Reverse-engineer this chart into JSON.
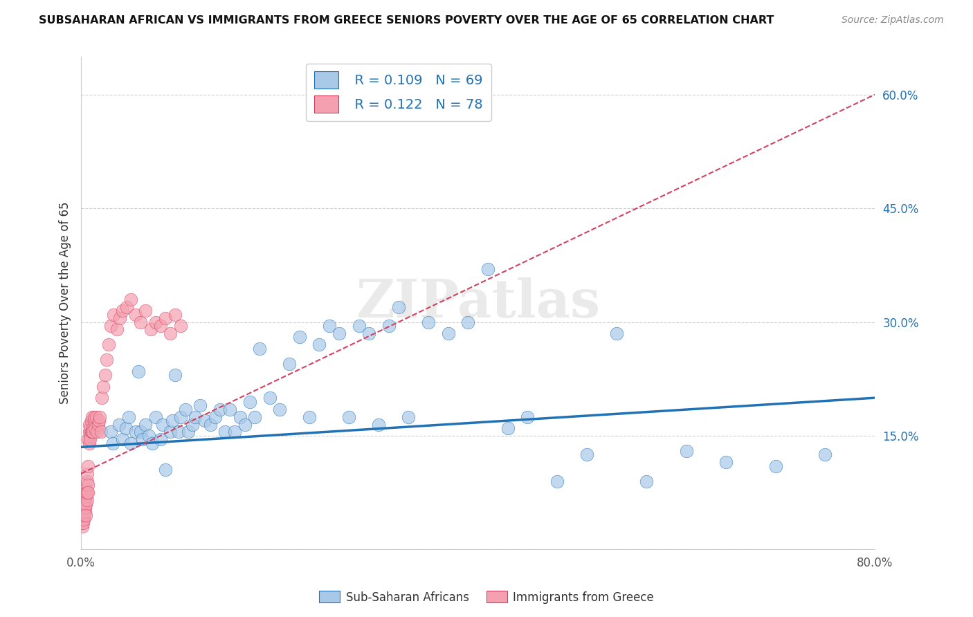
{
  "title": "SUBSAHARAN AFRICAN VS IMMIGRANTS FROM GREECE SENIORS POVERTY OVER THE AGE OF 65 CORRELATION CHART",
  "source": "Source: ZipAtlas.com",
  "ylabel": "Seniors Poverty Over the Age of 65",
  "xlim": [
    0,
    0.8
  ],
  "ylim": [
    0,
    0.65
  ],
  "ytick_right_vals": [
    0.0,
    0.15,
    0.3,
    0.45,
    0.6
  ],
  "ytick_right_labels": [
    "",
    "15.0%",
    "30.0%",
    "45.0%",
    "60.0%"
  ],
  "legend_blue_R": "R = 0.109",
  "legend_blue_N": "N = 69",
  "legend_pink_R": "R = 0.122",
  "legend_pink_N": "N = 78",
  "legend_label_blue": "Sub-Saharan Africans",
  "legend_label_pink": "Immigrants from Greece",
  "color_blue": "#a8c8e8",
  "color_pink": "#f4a0b0",
  "color_blue_line": "#2171b5",
  "color_pink_line": "#d44060",
  "color_legend_text": "#2171b5",
  "watermark": "ZIPatlas",
  "blue_scatter_x": [
    0.03,
    0.032,
    0.038,
    0.042,
    0.045,
    0.048,
    0.05,
    0.055,
    0.058,
    0.06,
    0.062,
    0.065,
    0.068,
    0.072,
    0.075,
    0.08,
    0.082,
    0.085,
    0.09,
    0.092,
    0.095,
    0.098,
    0.1,
    0.105,
    0.108,
    0.112,
    0.115,
    0.12,
    0.125,
    0.13,
    0.135,
    0.14,
    0.145,
    0.15,
    0.155,
    0.16,
    0.165,
    0.17,
    0.175,
    0.18,
    0.19,
    0.2,
    0.21,
    0.22,
    0.23,
    0.24,
    0.25,
    0.26,
    0.27,
    0.28,
    0.29,
    0.3,
    0.31,
    0.32,
    0.33,
    0.35,
    0.37,
    0.39,
    0.41,
    0.43,
    0.45,
    0.48,
    0.51,
    0.54,
    0.57,
    0.61,
    0.65,
    0.7,
    0.75
  ],
  "blue_scatter_y": [
    0.155,
    0.14,
    0.165,
    0.145,
    0.16,
    0.175,
    0.14,
    0.155,
    0.235,
    0.155,
    0.145,
    0.165,
    0.15,
    0.14,
    0.175,
    0.145,
    0.165,
    0.105,
    0.155,
    0.17,
    0.23,
    0.155,
    0.175,
    0.185,
    0.155,
    0.165,
    0.175,
    0.19,
    0.17,
    0.165,
    0.175,
    0.185,
    0.155,
    0.185,
    0.155,
    0.175,
    0.165,
    0.195,
    0.175,
    0.265,
    0.2,
    0.185,
    0.245,
    0.28,
    0.175,
    0.27,
    0.295,
    0.285,
    0.175,
    0.295,
    0.285,
    0.165,
    0.295,
    0.32,
    0.175,
    0.3,
    0.285,
    0.3,
    0.37,
    0.16,
    0.175,
    0.09,
    0.125,
    0.285,
    0.09,
    0.13,
    0.115,
    0.11,
    0.125
  ],
  "pink_scatter_x": [
    0.001,
    0.001,
    0.001,
    0.001,
    0.001,
    0.002,
    0.002,
    0.002,
    0.002,
    0.002,
    0.002,
    0.003,
    0.003,
    0.003,
    0.003,
    0.003,
    0.003,
    0.004,
    0.004,
    0.004,
    0.004,
    0.004,
    0.005,
    0.005,
    0.005,
    0.005,
    0.005,
    0.006,
    0.006,
    0.006,
    0.006,
    0.007,
    0.007,
    0.007,
    0.007,
    0.008,
    0.008,
    0.008,
    0.009,
    0.009,
    0.009,
    0.01,
    0.01,
    0.011,
    0.011,
    0.012,
    0.012,
    0.013,
    0.013,
    0.014,
    0.015,
    0.016,
    0.017,
    0.018,
    0.019,
    0.02,
    0.021,
    0.022,
    0.024,
    0.026,
    0.028,
    0.03,
    0.033,
    0.036,
    0.039,
    0.042,
    0.046,
    0.05,
    0.055,
    0.06,
    0.065,
    0.07,
    0.075,
    0.08,
    0.085,
    0.09,
    0.095,
    0.1
  ],
  "pink_scatter_y": [
    0.05,
    0.04,
    0.035,
    0.045,
    0.03,
    0.045,
    0.04,
    0.055,
    0.035,
    0.05,
    0.06,
    0.04,
    0.055,
    0.05,
    0.065,
    0.045,
    0.07,
    0.05,
    0.06,
    0.075,
    0.065,
    0.055,
    0.07,
    0.06,
    0.08,
    0.045,
    0.075,
    0.065,
    0.09,
    0.075,
    0.1,
    0.085,
    0.075,
    0.11,
    0.145,
    0.14,
    0.155,
    0.165,
    0.15,
    0.145,
    0.16,
    0.155,
    0.17,
    0.155,
    0.175,
    0.16,
    0.155,
    0.17,
    0.175,
    0.16,
    0.175,
    0.155,
    0.165,
    0.17,
    0.175,
    0.155,
    0.2,
    0.215,
    0.23,
    0.25,
    0.27,
    0.295,
    0.31,
    0.29,
    0.305,
    0.315,
    0.32,
    0.33,
    0.31,
    0.3,
    0.315,
    0.29,
    0.3,
    0.295,
    0.305,
    0.285,
    0.31,
    0.295
  ],
  "blue_line_x0": 0.0,
  "blue_line_x1": 0.8,
  "blue_line_y0": 0.135,
  "blue_line_y1": 0.2,
  "pink_line_x0": 0.0,
  "pink_line_x1": 0.8,
  "pink_line_y0": 0.1,
  "pink_line_y1": 0.6
}
